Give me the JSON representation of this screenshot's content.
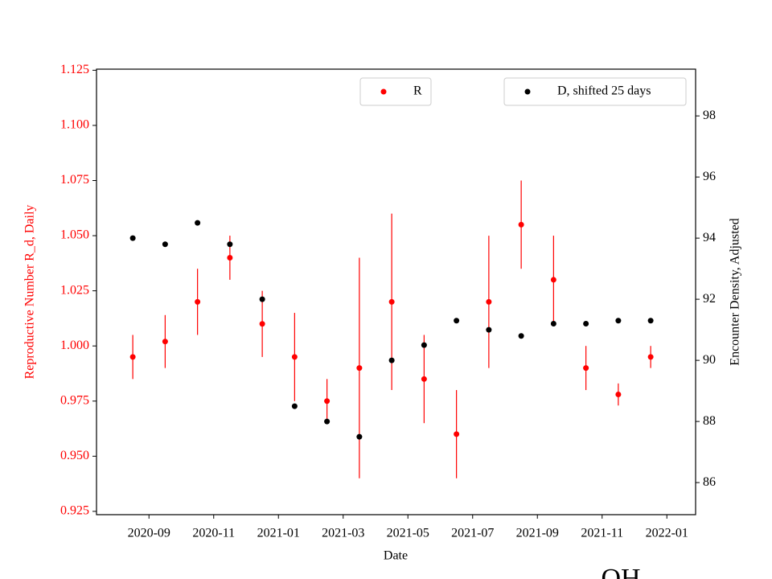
{
  "chart_data": {
    "type": "scatter",
    "x_label": "Date",
    "y_label": "Reproductive Number R_d, Daily",
    "y2_label": "Encounter Density, Adjusted",
    "categories": [
      "2020-08",
      "2020-09",
      "2020-10",
      "2020-11",
      "2020-12",
      "2021-01",
      "2021-02",
      "2021-03",
      "2021-04",
      "2021-05",
      "2021-06",
      "2021-07",
      "2021-08",
      "2021-09",
      "2021-10",
      "2021-11",
      "2021-12"
    ],
    "xticks": [
      "2020-09",
      "2020-11",
      "2021-01",
      "2021-03",
      "2021-05",
      "2021-07",
      "2021-09",
      "2021-11",
      "2022-01"
    ],
    "series": [
      {
        "name": "R",
        "color": "#ff0000",
        "axis": "y",
        "values": [
          0.995,
          1.002,
          1.02,
          1.04,
          1.01,
          0.995,
          0.975,
          0.99,
          1.02,
          0.985,
          0.96,
          1.02,
          1.055,
          1.03,
          0.99,
          0.978,
          0.995
        ],
        "errors": [
          0.01,
          0.012,
          0.015,
          0.01,
          0.015,
          0.02,
          0.01,
          0.05,
          0.04,
          0.02,
          0.02,
          0.03,
          0.02,
          0.02,
          0.01,
          0.005,
          0.005
        ]
      },
      {
        "name": "D, shifted 25 days",
        "color": "#000000",
        "axis": "y2",
        "values": [
          94,
          93.8,
          94.5,
          93.8,
          92,
          88.5,
          88,
          87.5,
          90,
          90.5,
          91.3,
          91,
          90.8,
          91.2,
          91.2,
          91.3,
          91.3
        ]
      }
    ],
    "ylim": [
      0.9235,
      1.1255
    ],
    "yticks": [
      0.925,
      {
        "value": 0.95,
        "label": "0.950"
      },
      0.975,
      {
        "value": 1.0,
        "label": "1.000"
      },
      1.025,
      {
        "value": 1.05,
        "label": "1.050"
      },
      1.075,
      {
        "value": 1.1,
        "label": "1.100"
      },
      1.125
    ],
    "y2lim": [
      84.95,
      99.53
    ],
    "y2ticks": [
      86,
      88,
      90,
      92,
      94,
      96,
      98
    ],
    "watermark": "OH"
  }
}
